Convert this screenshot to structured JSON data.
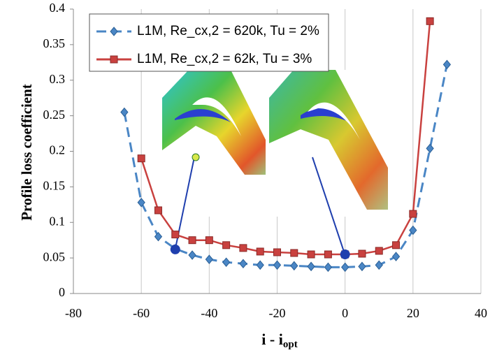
{
  "chart_data": {
    "type": "line",
    "y_label": "Profile loss coefficient",
    "x_label": "i - i",
    "x_label_subscript": "opt",
    "xlim": [
      -80,
      40
    ],
    "xticks": [
      -80,
      -60,
      -40,
      -20,
      0,
      20,
      40
    ],
    "ylim": [
      0,
      0.4
    ],
    "yticks": [
      0,
      0.05,
      0.1,
      0.15,
      0.2,
      0.25,
      0.3,
      0.35,
      0.4
    ],
    "grid": "x",
    "legend": "top-left",
    "series": [
      {
        "name": "L1M, Re_cx,2 = 620k, Tu = 2%",
        "color": "#4a86c5",
        "marker": "diamond",
        "dashed": true,
        "x": [
          -65,
          -60,
          -55,
          -50,
          -45,
          -40,
          -35,
          -30,
          -25,
          -20,
          -15,
          -10,
          -5,
          0,
          5,
          10,
          15,
          20,
          25,
          30
        ],
        "values": [
          0.255,
          0.128,
          0.08,
          0.063,
          0.054,
          0.048,
          0.044,
          0.042,
          0.04,
          0.04,
          0.039,
          0.038,
          0.037,
          0.037,
          0.038,
          0.04,
          0.052,
          0.089,
          0.204,
          0.322
        ]
      },
      {
        "name": "L1M, Re_cx,2 = 62k, Tu = 3%",
        "color": "#c9413f",
        "marker": "square",
        "dashed": false,
        "x": [
          -60,
          -55,
          -50,
          -45,
          -40,
          -35,
          -30,
          -25,
          -20,
          -15,
          -10,
          -5,
          0,
          5,
          10,
          15,
          20,
          25
        ],
        "values": [
          0.19,
          0.117,
          0.083,
          0.075,
          0.075,
          0.068,
          0.064,
          0.059,
          0.058,
          0.057,
          0.055,
          0.055,
          0.055,
          0.056,
          0.06,
          0.068,
          0.112,
          0.383
        ]
      }
    ],
    "markers": {
      "color": "#1f3fae",
      "x": [
        -50,
        0
      ],
      "values": [
        0.062,
        0.055
      ]
    }
  }
}
